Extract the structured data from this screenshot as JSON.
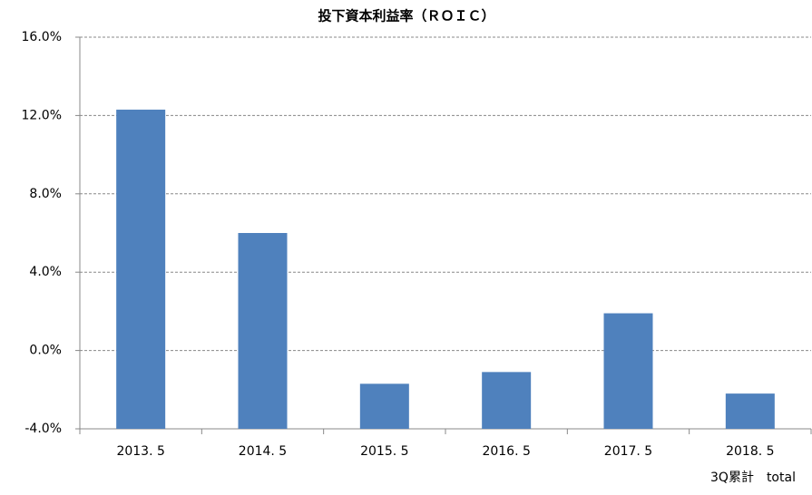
{
  "chart_data": {
    "type": "bar",
    "title": "投下資本利益率（ＲＯＩＣ）",
    "categories": [
      "2013. 5",
      "2014. 5",
      "2015. 5",
      "2016. 5",
      "2017. 5",
      "2018. 5"
    ],
    "annotation": "3Q累計　total",
    "values": [
      12.3,
      6.0,
      -1.7,
      -1.1,
      1.9,
      -2.2
    ],
    "color": "#4f81bd",
    "ylim": [
      -4,
      16
    ],
    "yticks": [
      {
        "value": -4,
        "label": "-4.0%"
      },
      {
        "value": 0,
        "label": "0.0%"
      },
      {
        "value": 4,
        "label": "4.0%"
      },
      {
        "value": 8,
        "label": "8.0%"
      },
      {
        "value": 12,
        "label": "12.0%"
      },
      {
        "value": 16,
        "label": "16.0%"
      }
    ],
    "grid": true
  }
}
